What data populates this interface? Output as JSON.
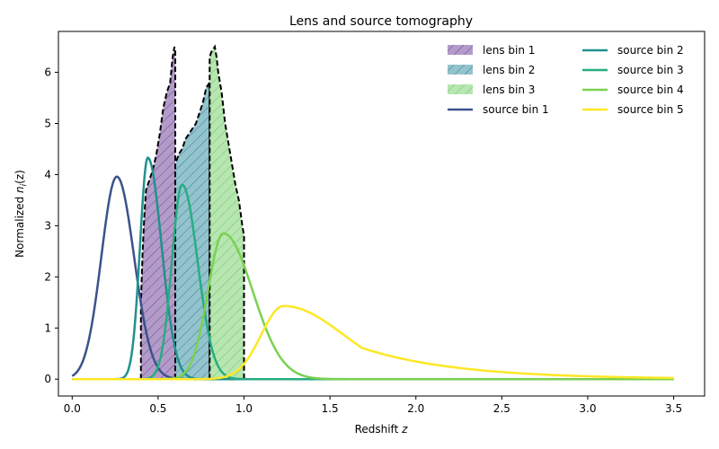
{
  "chart_data": {
    "type": "area",
    "title": "Lens and source tomography",
    "xlabel": "Redshift",
    "xlabel_var": "z",
    "ylabel_prefix": "Normalized ",
    "ylabel_var": "n",
    "ylabel_sub": "i",
    "ylabel_suffix": "(z)",
    "xlim": [
      -0.08,
      3.68
    ],
    "ylim": [
      -0.33,
      6.8
    ],
    "xticks": [
      0.0,
      0.5,
      1.0,
      1.5,
      2.0,
      2.5,
      3.0,
      3.5
    ],
    "xtick_labels": [
      "0.0",
      "0.5",
      "1.0",
      "1.5",
      "2.0",
      "2.5",
      "3.0",
      "3.5"
    ],
    "yticks": [
      0,
      1,
      2,
      3,
      4,
      5,
      6
    ],
    "ytick_labels": [
      "0",
      "1",
      "2",
      "3",
      "4",
      "5",
      "6"
    ],
    "grid": false,
    "legend_position": "top-right",
    "lens_bins": [
      {
        "name": "lens bin 1",
        "color": "#7a5a9c",
        "edge": "#5a3a7c",
        "points": [
          [
            0.4,
            0
          ],
          [
            0.4,
            1.5
          ],
          [
            0.41,
            2.5
          ],
          [
            0.42,
            3.2
          ],
          [
            0.43,
            3.7
          ],
          [
            0.45,
            3.9
          ],
          [
            0.47,
            4.1
          ],
          [
            0.49,
            4.4
          ],
          [
            0.51,
            4.8
          ],
          [
            0.53,
            5.3
          ],
          [
            0.55,
            5.6
          ],
          [
            0.57,
            5.8
          ],
          [
            0.585,
            6.3
          ],
          [
            0.595,
            6.5
          ],
          [
            0.6,
            6.4
          ],
          [
            0.6,
            0
          ]
        ]
      },
      {
        "name": "lens bin 2",
        "color": "#3a8fa3",
        "edge": "#2a6f83",
        "points": [
          [
            0.6,
            0
          ],
          [
            0.6,
            4.2
          ],
          [
            0.62,
            4.4
          ],
          [
            0.64,
            4.5
          ],
          [
            0.66,
            4.7
          ],
          [
            0.68,
            4.8
          ],
          [
            0.7,
            4.9
          ],
          [
            0.72,
            5.0
          ],
          [
            0.74,
            5.2
          ],
          [
            0.76,
            5.4
          ],
          [
            0.78,
            5.7
          ],
          [
            0.8,
            5.8
          ],
          [
            0.8,
            0
          ]
        ]
      },
      {
        "name": "lens bin 3",
        "color": "#7fd47f",
        "edge": "#5fb45f",
        "points": [
          [
            0.8,
            0
          ],
          [
            0.8,
            6.3
          ],
          [
            0.81,
            6.4
          ],
          [
            0.82,
            6.45
          ],
          [
            0.83,
            6.5
          ],
          [
            0.84,
            6.3
          ],
          [
            0.85,
            6.0
          ],
          [
            0.87,
            5.6
          ],
          [
            0.89,
            5.0
          ],
          [
            0.91,
            4.6
          ],
          [
            0.93,
            4.2
          ],
          [
            0.95,
            3.8
          ],
          [
            0.97,
            3.5
          ],
          [
            0.99,
            3.0
          ],
          [
            1.0,
            2.8
          ],
          [
            1.0,
            0
          ]
        ]
      }
    ],
    "source_bins": [
      {
        "name": "source bin 1",
        "color": "#3b528b",
        "mu": 0.26,
        "sl": 0.09,
        "sr": 0.1,
        "amp": 3.96,
        "z0": 0.0,
        "taper_left": true
      },
      {
        "name": "source bin 2",
        "color": "#21918c",
        "mu": 0.44,
        "sl": 0.045,
        "sr": 0.08,
        "amp": 4.33,
        "z0": 0.0
      },
      {
        "name": "source bin 3",
        "color": "#27ad81",
        "mu": 0.64,
        "sl": 0.06,
        "sr": 0.09,
        "amp": 3.8,
        "z0": 0.0
      },
      {
        "name": "source bin 4",
        "color": "#7ad151",
        "mu": 0.88,
        "sl": 0.09,
        "sr": 0.17,
        "amp": 2.85,
        "z0": 0.0
      },
      {
        "name": "source bin 5",
        "color": "#fde725",
        "mu": 1.23,
        "sl": 0.13,
        "sr": 0.35,
        "amp": 1.43,
        "z0": 0.0,
        "tail": 0.55
      }
    ]
  }
}
